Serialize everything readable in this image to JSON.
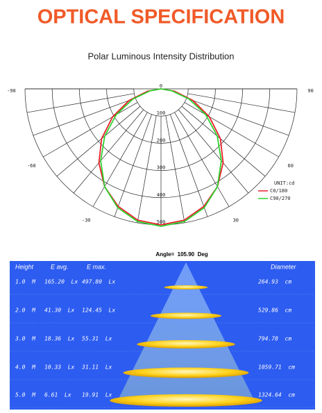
{
  "header": {
    "title": "OPTICAL SPECIFICATION"
  },
  "polar": {
    "title": "Polar Luminous Intensity Distribution",
    "angle_ticks": [
      -90,
      -60,
      -30,
      30,
      60,
      90
    ],
    "rlim": [
      0,
      500
    ],
    "rticks": [
      0,
      100,
      200,
      300,
      400,
      500
    ],
    "unit_label": "UNIT:cd",
    "angles": [
      -90,
      -80,
      -70,
      -60,
      -50,
      -40,
      -30,
      -20,
      -10,
      0,
      10,
      20,
      30,
      40,
      50,
      60,
      70,
      80,
      90
    ],
    "series": [
      {
        "name": "C0/180",
        "color": "#e8202a",
        "values": [
          0,
          50,
          125,
          205,
          285,
          355,
          415,
          460,
          490,
          500,
          490,
          460,
          415,
          355,
          285,
          205,
          125,
          50,
          0
        ]
      },
      {
        "name": "C90/270",
        "color": "#2fd12f",
        "values": [
          0,
          40,
          110,
          190,
          270,
          345,
          415,
          465,
          495,
          505,
          495,
          465,
          415,
          345,
          270,
          190,
          110,
          40,
          0
        ]
      }
    ]
  },
  "angle_text": "Angle=  105.90  Deg",
  "table": {
    "headers": [
      "Height",
      "E avg.",
      "E max.",
      "Diameter"
    ],
    "rows": [
      [
        "1.0  M",
        "165.20  Lx",
        "497.80  Lx",
        "264.93  cm"
      ],
      [
        "2.0  M",
        "41.30  Lx",
        "124.45  Lx",
        "529.86  cm"
      ],
      [
        "3.0  M",
        "18.36  Lx",
        "55.31  Lx",
        "794.78  cm"
      ],
      [
        "4.0  M",
        "10.33  Lx",
        "31.11  Lx",
        "1059.71  cm"
      ],
      [
        "5.0  M",
        "6.61  Lx",
        "19.91  Lx",
        "1324.64  cm"
      ]
    ]
  }
}
